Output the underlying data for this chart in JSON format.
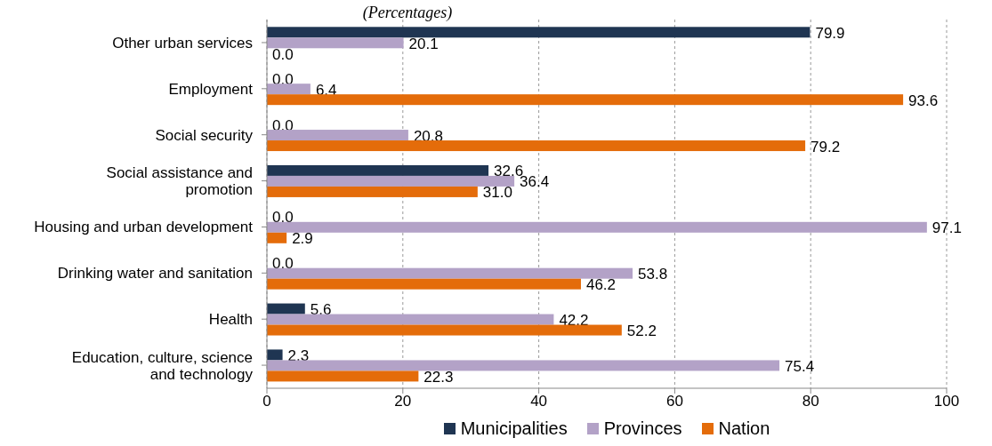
{
  "chart_data": {
    "type": "bar",
    "orientation": "horizontal",
    "title": "(Percentages)",
    "categories": [
      "Other urban services",
      "Employment",
      "Social security",
      "Social assistance and promotion",
      "Housing and urban development",
      "Drinking water and sanitation",
      "Health",
      "Education, culture, science and technology"
    ],
    "series": [
      {
        "name": "Municipalities",
        "color": "#1f3552",
        "values": [
          79.9,
          0,
          0,
          32.6,
          0,
          0,
          5.6,
          2.3
        ],
        "value_labels": [
          "79.9",
          "0.0",
          "0.0",
          "32.6",
          "0.0",
          "0.0",
          "5.6",
          "2.3"
        ]
      },
      {
        "name": "Provinces",
        "color": "#b3a2c7",
        "values": [
          20.1,
          6.4,
          20.8,
          36.4,
          97.1,
          53.8,
          42.2,
          75.4
        ],
        "value_labels": [
          "20.1",
          "6.4",
          "20.8",
          "36.4",
          "97.1",
          "53.8",
          "42.2",
          "75.4"
        ]
      },
      {
        "name": "Nation",
        "color": "#e46c0a",
        "values": [
          0,
          93.6,
          79.2,
          31.0,
          2.9,
          46.2,
          52.2,
          22.3
        ],
        "value_labels": [
          "0.0",
          "93.6",
          "79.2",
          "31.0",
          "2.9",
          "46.2",
          "52.2",
          "22.3"
        ]
      }
    ],
    "xlim": [
      0,
      100
    ],
    "xticks": [
      0,
      20,
      40,
      60,
      80,
      100
    ],
    "grid": "x",
    "legend": "bottom"
  }
}
